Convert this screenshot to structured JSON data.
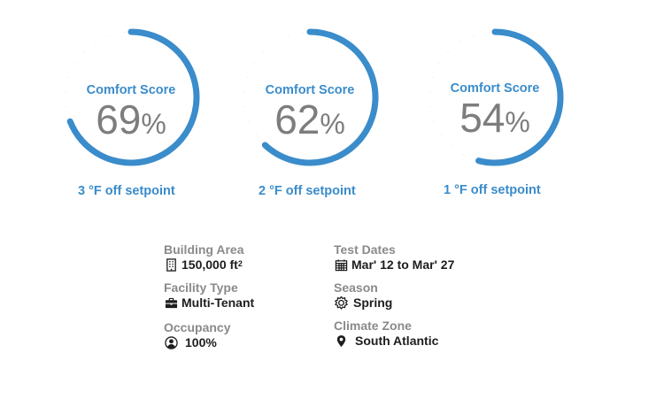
{
  "gauges": [
    {
      "title": "Comfort Score",
      "score": 69,
      "unit": "%",
      "offset_text": "3 °F off setpoint"
    },
    {
      "title": "Comfort Score",
      "score": 62,
      "unit": "%",
      "offset_text": "2 °F off setpoint"
    },
    {
      "title": "Comfort Score",
      "score": 54,
      "unit": "%",
      "offset_text": "1 °F off setpoint"
    }
  ],
  "details": {
    "building_area": {
      "label": "Building Area",
      "value": "150,000 ft",
      "superscript": "2",
      "icon": "building-icon"
    },
    "facility_type": {
      "label": "Facility Type",
      "value": "Multi-Tenant",
      "icon": "briefcase-icon"
    },
    "occupancy": {
      "label": "Occupancy",
      "value": "100%",
      "icon": "user-circle-icon"
    },
    "test_dates": {
      "label": "Test Dates",
      "value": "Mar' 12 to Mar' 27",
      "icon": "calendar-icon"
    },
    "season": {
      "label": "Season",
      "value": "Spring",
      "icon": "sun-icon"
    },
    "climate_zone": {
      "label": "Climate Zone",
      "value": "South Atlantic",
      "icon": "map-pin-icon"
    }
  },
  "colors": {
    "accent": "#3a8ccb",
    "track": "#e2e2e2",
    "value_text": "#7d7d7d",
    "label_text": "#8a8a8a",
    "detail_text": "#1d1d1d"
  }
}
